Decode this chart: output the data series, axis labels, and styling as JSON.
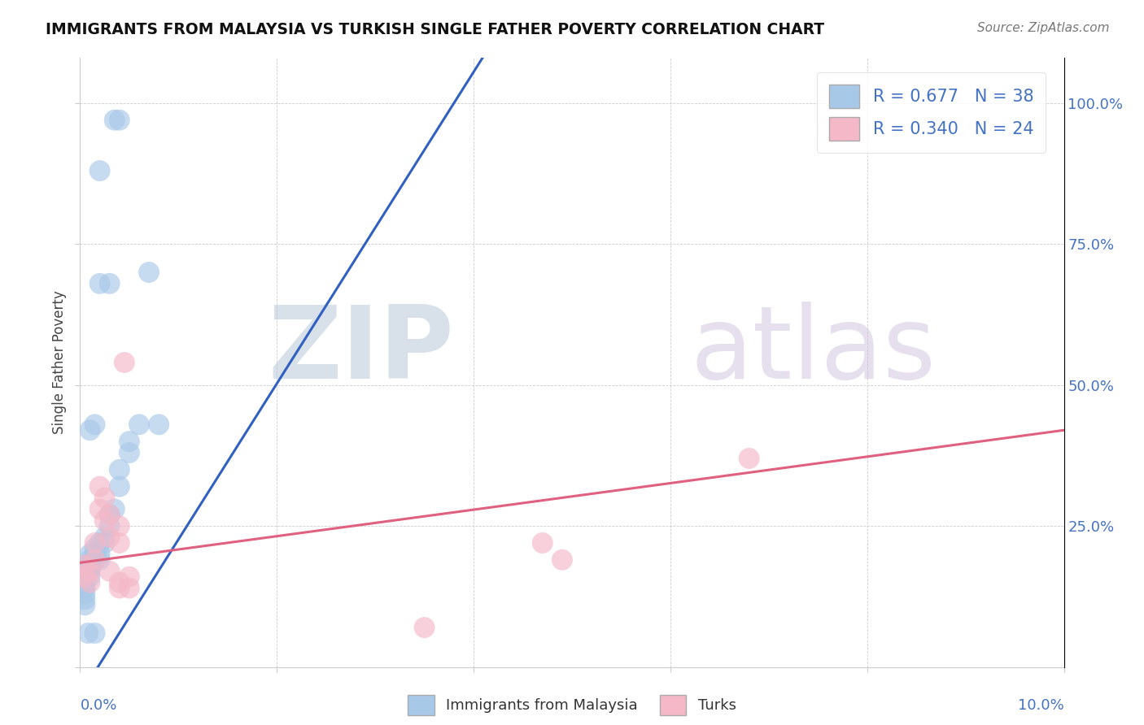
{
  "title": "IMMIGRANTS FROM MALAYSIA VS TURKISH SINGLE FATHER POVERTY CORRELATION CHART",
  "source": "Source: ZipAtlas.com",
  "legend_label1": "Immigrants from Malaysia",
  "legend_label2": "Turks",
  "R1": "0.677",
  "N1": "38",
  "R2": "0.340",
  "N2": "24",
  "blue_color": "#a8c8e8",
  "pink_color": "#f4b8c8",
  "blue_line_color": "#3060c0",
  "pink_line_color": "#e06080",
  "blue_scatter": [
    [
      0.0005,
      0.18
    ],
    [
      0.0005,
      0.15
    ],
    [
      0.0005,
      0.14
    ],
    [
      0.0005,
      0.13
    ],
    [
      0.0005,
      0.12
    ],
    [
      0.0005,
      0.11
    ],
    [
      0.001,
      0.2
    ],
    [
      0.001,
      0.19
    ],
    [
      0.001,
      0.18
    ],
    [
      0.001,
      0.17
    ],
    [
      0.001,
      0.16
    ],
    [
      0.0015,
      0.21
    ],
    [
      0.0015,
      0.2
    ],
    [
      0.0015,
      0.19
    ],
    [
      0.002,
      0.22
    ],
    [
      0.002,
      0.2
    ],
    [
      0.002,
      0.19
    ],
    [
      0.0025,
      0.23
    ],
    [
      0.0025,
      0.22
    ],
    [
      0.003,
      0.27
    ],
    [
      0.003,
      0.25
    ],
    [
      0.0035,
      0.28
    ],
    [
      0.004,
      0.35
    ],
    [
      0.004,
      0.32
    ],
    [
      0.005,
      0.4
    ],
    [
      0.005,
      0.38
    ],
    [
      0.006,
      0.43
    ],
    [
      0.007,
      0.7
    ],
    [
      0.008,
      0.43
    ],
    [
      0.0015,
      0.43
    ],
    [
      0.001,
      0.42
    ],
    [
      0.0008,
      0.06
    ],
    [
      0.0015,
      0.06
    ],
    [
      0.0035,
      0.97
    ],
    [
      0.004,
      0.97
    ],
    [
      0.002,
      0.88
    ],
    [
      0.003,
      0.68
    ],
    [
      0.002,
      0.68
    ]
  ],
  "pink_scatter": [
    [
      0.0005,
      0.18
    ],
    [
      0.0005,
      0.16
    ],
    [
      0.001,
      0.17
    ],
    [
      0.001,
      0.15
    ],
    [
      0.0015,
      0.22
    ],
    [
      0.0015,
      0.19
    ],
    [
      0.002,
      0.32
    ],
    [
      0.002,
      0.28
    ],
    [
      0.0025,
      0.3
    ],
    [
      0.0025,
      0.26
    ],
    [
      0.003,
      0.27
    ],
    [
      0.003,
      0.23
    ],
    [
      0.003,
      0.17
    ],
    [
      0.004,
      0.25
    ],
    [
      0.004,
      0.22
    ],
    [
      0.004,
      0.15
    ],
    [
      0.004,
      0.14
    ],
    [
      0.005,
      0.16
    ],
    [
      0.005,
      0.14
    ],
    [
      0.0045,
      0.54
    ],
    [
      0.047,
      0.22
    ],
    [
      0.049,
      0.19
    ],
    [
      0.068,
      0.37
    ],
    [
      0.035,
      0.07
    ]
  ],
  "blue_line": [
    -0.002,
    1.08
  ],
  "pink_line": [
    0.155,
    0.42
  ],
  "xmin": 0.0,
  "xmax": 0.1,
  "ymin": 0.0,
  "ymax": 1.08,
  "ytick_positions": [
    0.0,
    0.25,
    0.5,
    0.75,
    1.0
  ],
  "ytick_labels": [
    "",
    "25.0%",
    "50.0%",
    "75.0%",
    "100.0%"
  ],
  "xtick_positions": [
    0.0,
    0.02,
    0.04,
    0.06,
    0.08,
    0.1
  ],
  "watermark_zip": "ZIP",
  "watermark_atlas": "atlas",
  "watermark_color_zip": "#b8c8d8",
  "watermark_color_atlas": "#c8b8d0"
}
